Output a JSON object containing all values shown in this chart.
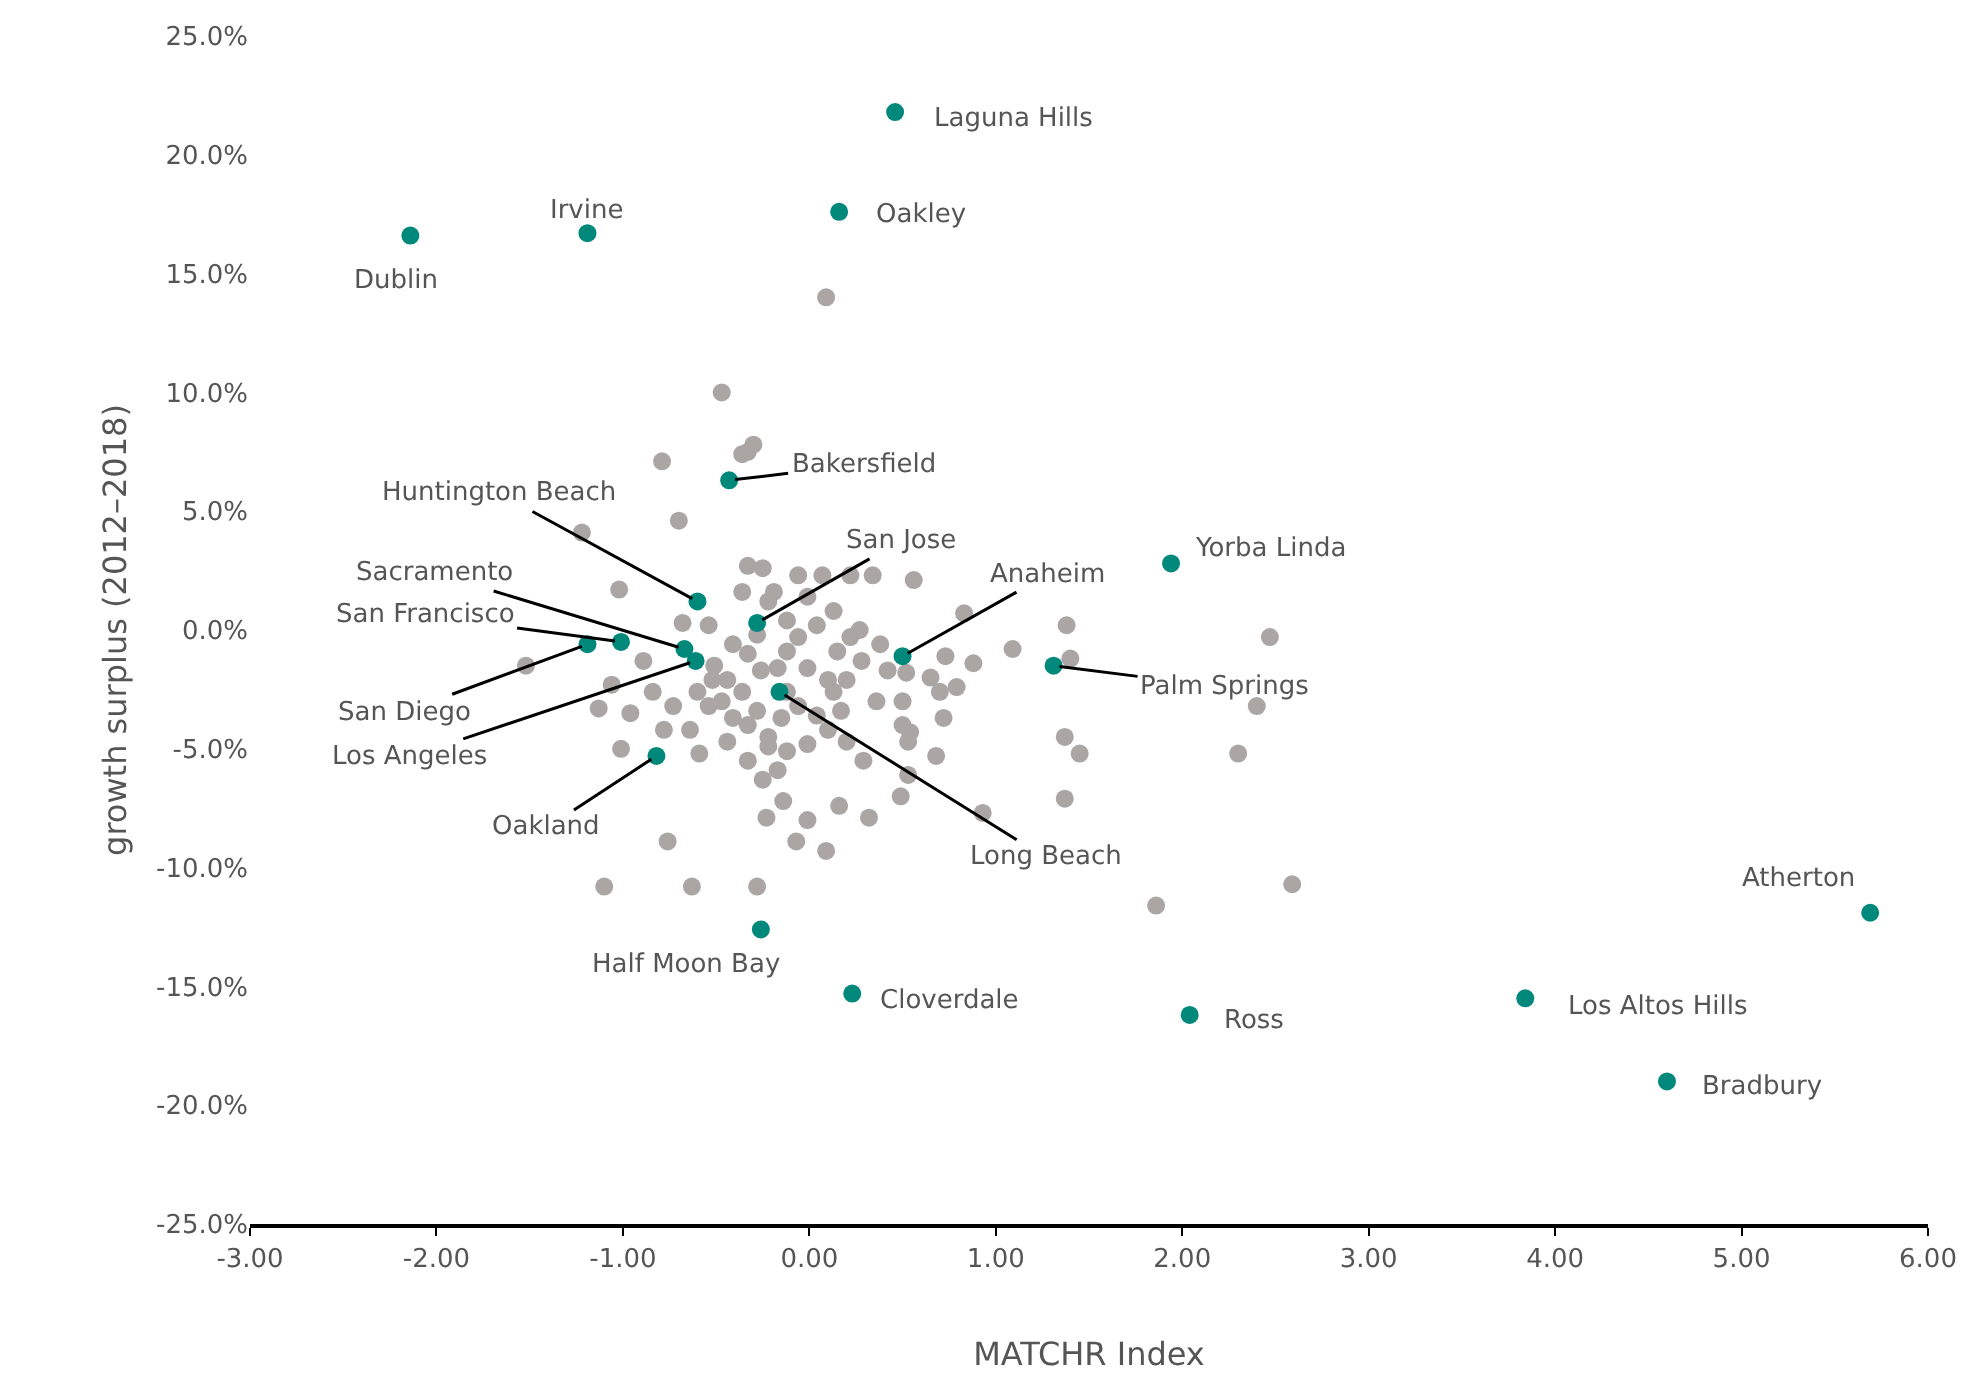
{
  "chart_data": {
    "type": "scatter",
    "xlabel": "MATCHR Index",
    "ylabel": "growth surplus (2012–2018)",
    "xlim": [
      -3,
      6
    ],
    "ylim": [
      -25,
      25
    ],
    "xticks": [
      {
        "value": -3,
        "label": "-3.00"
      },
      {
        "value": -2,
        "label": "-2.00"
      },
      {
        "value": -1,
        "label": "-1.00"
      },
      {
        "value": 0,
        "label": "0.00"
      },
      {
        "value": 1,
        "label": "1.00"
      },
      {
        "value": 2,
        "label": "2.00"
      },
      {
        "value": 3,
        "label": "3.00"
      },
      {
        "value": 4,
        "label": "4.00"
      },
      {
        "value": 5,
        "label": "5.00"
      },
      {
        "value": 6,
        "label": "6.00"
      }
    ],
    "yticks": [
      {
        "value": -25,
        "label": "-25.0%"
      },
      {
        "value": -20,
        "label": "-20.0%"
      },
      {
        "value": -15,
        "label": "-15.0%"
      },
      {
        "value": -10,
        "label": "-10.0%"
      },
      {
        "value": -5,
        "label": "-5.0%"
      },
      {
        "value": 0,
        "label": "0.0%"
      },
      {
        "value": 5,
        "label": "5.0%"
      },
      {
        "value": 10,
        "label": "10.0%"
      },
      {
        "value": 15,
        "label": "15.0%"
      },
      {
        "value": 20,
        "label": "20.0%"
      },
      {
        "value": 25,
        "label": "25.0%"
      }
    ],
    "marker": "circle",
    "series": [
      {
        "color": "#aba6a4",
        "x": [
          -0.47,
          -0.33,
          -0.36,
          -0.3,
          -0.79,
          -0.7,
          -1.22,
          -1.02,
          -1.52,
          -1.06,
          -1.13,
          -0.68,
          -0.54,
          -0.52,
          -0.64,
          -0.78,
          -1.01,
          -0.76,
          -1.1,
          -0.63,
          -0.28,
          0.09,
          -0.23,
          -0.07,
          -0.14,
          -0.25,
          -0.01,
          0.09,
          0.16,
          0.32,
          0.49,
          0.68,
          0.93,
          0.53,
          0.53,
          0.54,
          0.72,
          0.52,
          0.38,
          0.27,
          0.07,
          0.22,
          0.34,
          0.56,
          0.83,
          0.73,
          0.65,
          0.5,
          0.5,
          0.7,
          0.79,
          0.88,
          1.09,
          1.38,
          1.4,
          1.37,
          1.45,
          1.37,
          2.47,
          2.4,
          2.3,
          1.86,
          2.59,
          0.1,
          -0.01,
          -0.17,
          -0.12,
          -0.06,
          -0.28,
          -0.22,
          -0.19,
          -0.36,
          -0.33,
          -0.25,
          -0.06,
          -0.12,
          0.04,
          0.15,
          0.2,
          0.28,
          0.36,
          0.42,
          0.17,
          0.04,
          -0.06,
          -0.15,
          -0.28,
          -0.36,
          -0.44,
          -0.47,
          -0.41,
          -0.33,
          -0.22,
          -0.12,
          -0.01,
          0.1,
          0.2,
          0.29,
          -0.17,
          -0.22,
          -0.33,
          -0.44,
          -0.54,
          -0.6,
          -0.51,
          -0.41,
          -0.33,
          -0.26,
          0.13,
          0.22,
          0.13,
          -0.01,
          -0.12,
          -0.59,
          -0.73,
          -0.89,
          -0.84,
          -0.96
        ],
        "values": [
          10.0,
          7.5,
          7.4,
          7.8,
          7.1,
          4.6,
          4.1,
          1.7,
          -1.5,
          -2.3,
          -3.3,
          0.3,
          0.2,
          -2.1,
          -4.2,
          -4.2,
          -5.0,
          -8.9,
          -10.8,
          -10.8,
          -10.8,
          14.0,
          -7.9,
          -8.9,
          -7.2,
          -6.3,
          -8.0,
          -9.3,
          -7.4,
          -7.9,
          -7.0,
          -5.3,
          -7.7,
          -6.1,
          -4.7,
          -4.3,
          -3.7,
          -1.8,
          -0.6,
          0.0,
          2.3,
          2.3,
          2.3,
          2.1,
          0.7,
          -1.1,
          -2.0,
          -3.0,
          -4.0,
          -2.6,
          -2.4,
          -1.4,
          -0.8,
          0.2,
          -1.2,
          -4.5,
          -5.2,
          -7.1,
          -0.3,
          -3.2,
          -5.2,
          -11.6,
          -10.7,
          -2.1,
          -1.6,
          -1.6,
          -0.9,
          -0.3,
          -0.2,
          1.2,
          1.6,
          1.6,
          2.7,
          2.6,
          2.3,
          0.4,
          0.2,
          -0.9,
          -2.1,
          -1.3,
          -3.0,
          -1.7,
          -3.4,
          -3.6,
          -3.2,
          -3.7,
          -3.4,
          -2.6,
          -2.1,
          -3.0,
          -3.7,
          -4.0,
          -4.5,
          -5.1,
          -4.8,
          -4.2,
          -4.7,
          -5.5,
          -5.9,
          -4.9,
          -5.5,
          -4.7,
          -3.2,
          -2.6,
          -1.5,
          -0.6,
          -1.0,
          -1.7,
          -2.6,
          -0.3,
          0.8,
          1.4,
          -2.6,
          -5.2,
          -3.2,
          -1.3,
          -2.6,
          -3.5
        ]
      },
      {
        "color": "#00897b",
        "x": [
          0.46,
          0.16,
          -1.19,
          -2.14,
          -0.43,
          -0.6,
          -0.28,
          0.5,
          1.94,
          1.31,
          -0.67,
          -1.01,
          -1.19,
          -0.61,
          -0.16,
          -0.82,
          -0.26,
          0.23,
          2.04,
          3.84,
          5.69,
          4.6
        ],
        "values": [
          21.8,
          17.6,
          16.7,
          16.6,
          6.3,
          1.2,
          0.3,
          -1.1,
          2.8,
          -1.5,
          -0.8,
          -0.5,
          -0.6,
          -1.3,
          -2.6,
          -5.3,
          -12.6,
          -15.3,
          -16.2,
          -15.5,
          -11.9,
          -19.0
        ]
      }
    ],
    "annotations": [
      {
        "text": "Laguna Hills",
        "x": 0.46,
        "y": 21.8
      },
      {
        "text": "Oakley",
        "x": 0.16,
        "y": 17.6
      },
      {
        "text": "Irvine",
        "x": -1.19,
        "y": 16.7
      },
      {
        "text": "Dublin",
        "x": -2.14,
        "y": 16.6
      },
      {
        "text": "Bakersfield",
        "x": -0.43,
        "y": 6.3
      },
      {
        "text": "Huntington Beach",
        "x": -0.6,
        "y": 1.2
      },
      {
        "text": "San Jose",
        "x": -0.28,
        "y": 0.3
      },
      {
        "text": "Anaheim",
        "x": 0.5,
        "y": -1.1
      },
      {
        "text": "Yorba Linda",
        "x": 1.94,
        "y": 2.8
      },
      {
        "text": "Palm Springs",
        "x": 1.31,
        "y": -1.5
      },
      {
        "text": "Sacramento",
        "x": -0.67,
        "y": -0.8
      },
      {
        "text": "San Francisco",
        "x": -1.01,
        "y": -0.5
      },
      {
        "text": "San Diego",
        "x": -1.19,
        "y": -0.6
      },
      {
        "text": "Los Angeles",
        "x": -0.61,
        "y": -1.3
      },
      {
        "text": "Long Beach",
        "x": -0.16,
        "y": -2.6
      },
      {
        "text": "Oakland",
        "x": -0.82,
        "y": -5.3
      },
      {
        "text": "Half Moon Bay",
        "x": -0.26,
        "y": -12.6
      },
      {
        "text": "Cloverdale",
        "x": 0.23,
        "y": -15.3
      },
      {
        "text": "Ross",
        "x": 2.04,
        "y": -16.2
      },
      {
        "text": "Los Altos Hills",
        "x": 3.84,
        "y": -15.5
      },
      {
        "text": "Atherton",
        "x": 5.69,
        "y": -11.9
      },
      {
        "text": "Bradbury",
        "x": 4.6,
        "y": -19.0
      }
    ]
  }
}
